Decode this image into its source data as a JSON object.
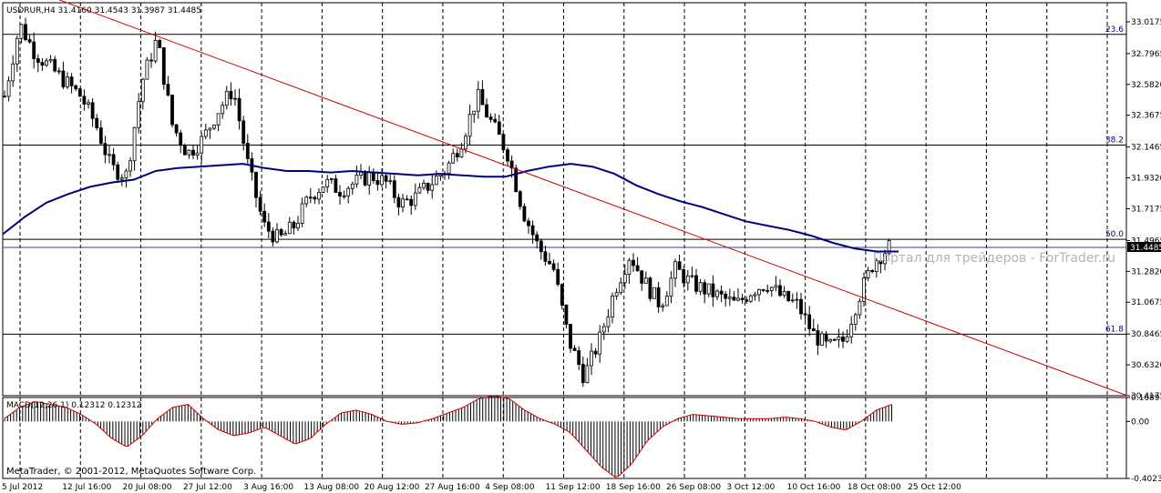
{
  "chart_data": [
    {
      "type": "candlestick",
      "title": "USDRUR,H4  31.4160 31.4543 31.3987 31.4485",
      "symbol": "USDRUR",
      "timeframe": "H4",
      "ohlc_last": [
        31.416,
        31.4543,
        31.3987,
        31.4485
      ],
      "current_price": 31.4485,
      "current_price_label": "31.4485",
      "ylim": [
        30.4175,
        33.15
      ],
      "yticks": [
        "33.0175",
        "32.7965",
        "32.5820",
        "32.3675",
        "32.1465",
        "31.9320",
        "31.7175",
        "31.4965",
        "31.2820",
        "31.0675",
        "30.8465",
        "30.6320",
        "30.4175"
      ],
      "xticks": [
        "5 Jul 2012",
        "12 Jul 16:00",
        "20 Jul 08:00",
        "27 Jul 12:00",
        "3 Aug 16:00",
        "13 Aug 08:00",
        "20 Aug 12:00",
        "27 Aug 16:00",
        "4 Sep 08:00",
        "11 Sep 12:00",
        "18 Sep 16:00",
        "26 Sep 08:00",
        "3 Oct 12:00",
        "10 Oct 16:00",
        "18 Oct 08:00",
        "25 Oct 12:00"
      ],
      "fibonacci_levels": [
        {
          "label": "23.6",
          "value": 32.93
        },
        {
          "label": "38.2",
          "value": 32.16
        },
        {
          "label": "50.0",
          "value": 31.505
        },
        {
          "label": "61.8",
          "value": 30.845
        }
      ],
      "trendline": {
        "from": 33.17,
        "to": 30.42,
        "color": "#cc0000"
      },
      "moving_average": {
        "color": "#000080",
        "values": [
          31.54,
          31.66,
          31.76,
          31.82,
          31.87,
          31.9,
          31.92,
          31.98,
          32.0,
          32.01,
          32.02,
          32.03,
          32.0,
          31.98,
          31.98,
          31.97,
          31.98,
          31.97,
          31.96,
          31.95,
          31.96,
          31.95,
          31.94,
          31.94,
          31.98,
          32.01,
          32.03,
          32.01,
          31.96,
          31.88,
          31.82,
          31.77,
          31.73,
          31.68,
          31.63,
          31.6,
          31.57,
          31.53,
          31.48,
          31.44,
          31.42,
          31.42
        ]
      },
      "price_path": [
        32.5,
        33.0,
        32.8,
        32.7,
        32.6,
        32.5,
        32.3,
        32.0,
        31.95,
        32.6,
        32.9,
        32.3,
        32.1,
        32.2,
        32.4,
        32.55,
        32.0,
        31.6,
        31.5,
        31.6,
        31.8,
        31.9,
        31.85,
        31.9,
        31.95,
        31.9,
        31.75,
        31.8,
        31.9,
        32.0,
        32.2,
        32.5,
        32.3,
        32.1,
        31.7,
        31.45,
        31.3,
        30.8,
        30.55,
        30.8,
        31.15,
        31.4,
        31.2,
        31.05,
        31.3,
        31.2,
        31.15,
        31.1,
        31.05,
        31.15,
        31.2,
        31.1,
        31.05,
        30.85,
        30.75,
        30.8,
        31.1,
        31.35,
        31.45
      ]
    },
    {
      "type": "histogram",
      "title": "MACD(12,26,1)  0.12312 0.12312",
      "series_name": "MACD(12,26,1)",
      "last_values": [
        "0.12312",
        "0.12312"
      ],
      "ylim": [
        -0.40234,
        0.16891
      ],
      "yticks": [
        "0.16891",
        "0.00",
        "-0.40234"
      ],
      "profile": [
        0.02,
        0.1,
        0.14,
        0.12,
        0.1,
        0.05,
        -0.02,
        -0.12,
        -0.18,
        -0.1,
        0.02,
        0.1,
        0.12,
        0.02,
        -0.06,
        -0.1,
        -0.08,
        -0.04,
        -0.1,
        -0.16,
        -0.12,
        -0.02,
        0.06,
        0.08,
        0.05,
        0.0,
        -0.02,
        -0.01,
        0.02,
        0.06,
        0.1,
        0.16,
        0.18,
        0.16,
        0.08,
        0.02,
        -0.02,
        -0.08,
        -0.2,
        -0.32,
        -0.4,
        -0.3,
        -0.14,
        -0.04,
        0.02,
        0.05,
        0.04,
        0.03,
        0.02,
        0.02,
        0.02,
        0.03,
        0.02,
        0.0,
        -0.04,
        -0.06,
        0.0,
        0.08,
        0.12
      ]
    }
  ],
  "watermark": "Портал для трейдеров - ForTrader.ru",
  "copyright": "MetaTrader, © 2001-2012, MetaQuotes Software Corp."
}
